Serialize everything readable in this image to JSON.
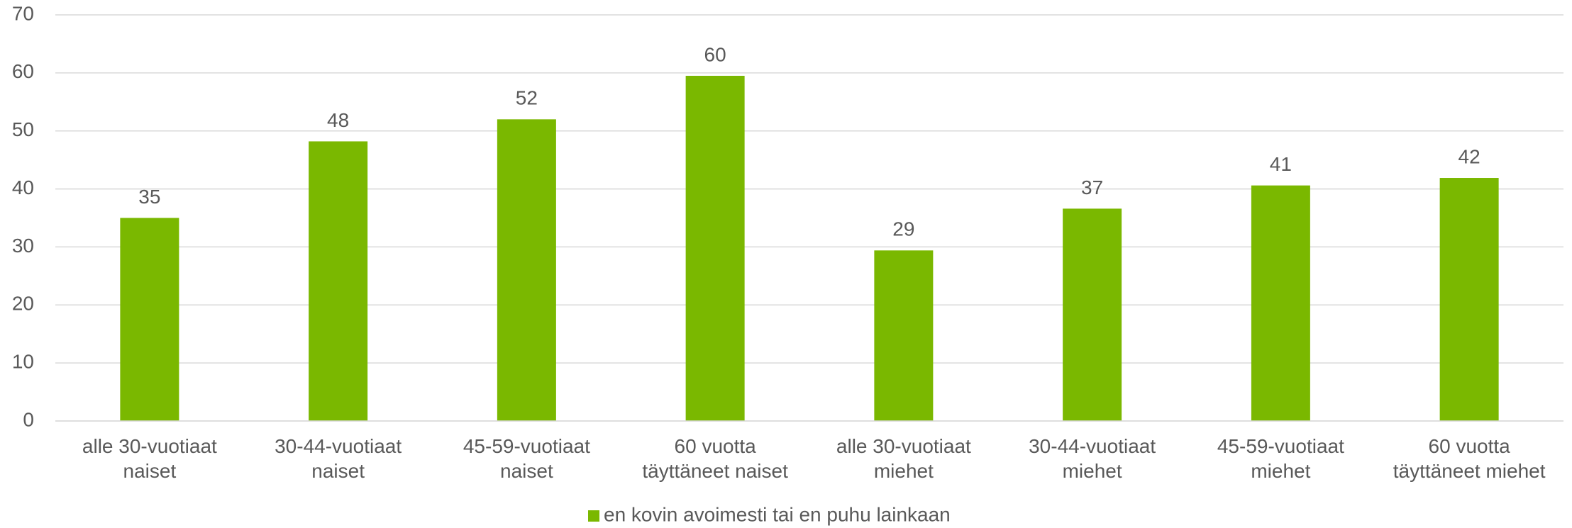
{
  "chart_data": {
    "type": "bar",
    "categories": [
      "alle 30-vuotiaat naiset",
      "30-44-vuotiaat naiset",
      "45-59-vuotiaat naiset",
      "60 vuotta täyttäneet naiset",
      "alle 30-vuotiaat miehet",
      "30-44-vuotiaat miehet",
      "45-59-vuotiaat miehet",
      "60 vuotta täyttäneet miehet"
    ],
    "series": [
      {
        "name": "en kovin avoimesti tai en puhu lainkaan",
        "color": "#7ab800",
        "values": [
          35,
          48.2,
          52,
          59.5,
          29.4,
          36.6,
          40.6,
          41.9
        ],
        "value_labels": [
          "35",
          "48",
          "52",
          "60",
          "29",
          "37",
          "41",
          "42"
        ]
      }
    ],
    "ylim": [
      0,
      70
    ],
    "yticks": [
      0,
      10,
      20,
      30,
      40,
      50,
      60,
      70
    ],
    "grid": true,
    "legend": "bottom"
  }
}
